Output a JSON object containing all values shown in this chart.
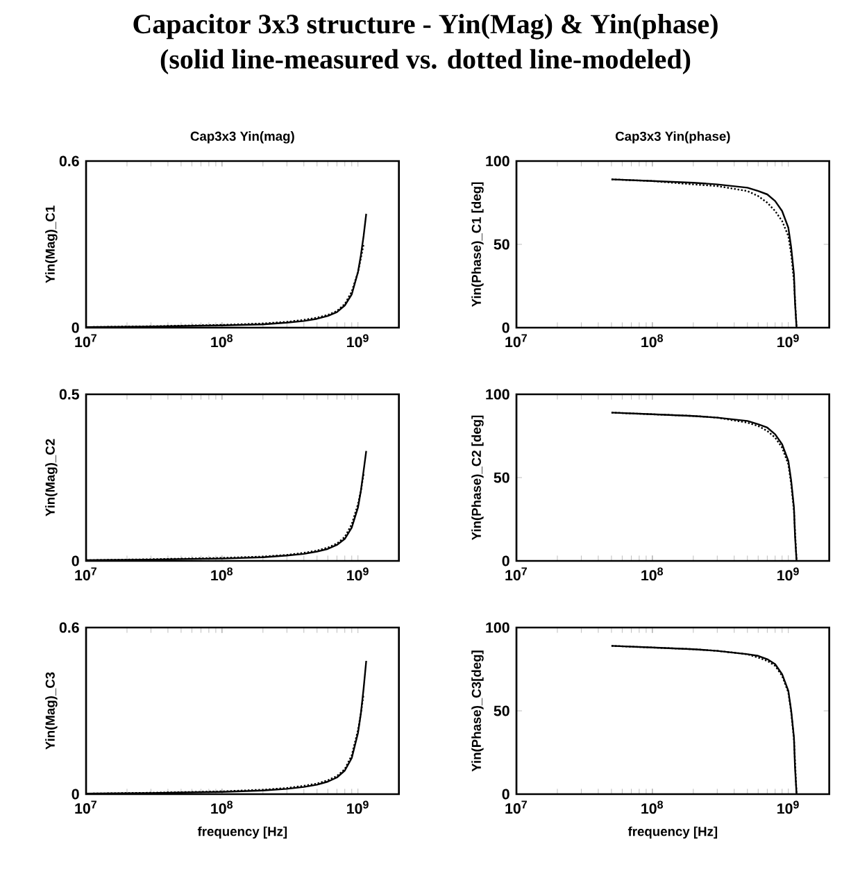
{
  "chart_data": [
    {
      "type": "other",
      "title": "Capacitor 3x3 structure - Yin(Mag) & Yin(phase)",
      "subtitle": "(solid line-measured vs. dotted line-modeled)"
    },
    {
      "type": "line",
      "title": "Cap3x3 Yin(mag)",
      "ylabel": "Yin(Mag)_C1",
      "log": "x",
      "xlim": [
        10000000,
        2000000000
      ],
      "xticks": [
        {
          "value": 10000000,
          "label": "10$^{7}$"
        },
        {
          "value": 100000000,
          "label": "10$^{8}$"
        },
        {
          "value": 1000000000,
          "label": "10$^{9}$"
        }
      ],
      "ylim": [
        0,
        0.6
      ],
      "yticks": [
        0,
        0.6
      ],
      "marker": "none",
      "series": [
        {
          "color": "#000000",
          "line_style": "solid",
          "x": [
            10000000,
            30000000,
            100000000,
            200000000,
            300000000,
            400000000,
            500000000,
            600000000,
            700000000,
            800000000,
            900000000,
            1000000000,
            1050000000,
            1100000000,
            1150000000
          ],
          "values": [
            0.002,
            0.004,
            0.008,
            0.012,
            0.018,
            0.024,
            0.032,
            0.042,
            0.056,
            0.08,
            0.12,
            0.2,
            0.26,
            0.33,
            0.41
          ]
        },
        {
          "color": "#000000",
          "line_style": "dotted",
          "x": [
            10000000,
            30000000,
            100000000,
            200000000,
            300000000,
            400000000,
            500000000,
            600000000,
            700000000,
            800000000,
            900000000,
            1000000000,
            1050000000,
            1100000000
          ],
          "values": [
            0.002,
            0.005,
            0.01,
            0.015,
            0.021,
            0.028,
            0.036,
            0.046,
            0.06,
            0.085,
            0.13,
            0.2,
            0.25,
            0.3
          ]
        }
      ]
    },
    {
      "type": "line",
      "title": "Cap3x3 Yin(phase)",
      "ylabel": "Yin(Phase)_C1 [deg]",
      "log": "x",
      "xlim": [
        10000000,
        2000000000
      ],
      "xticks": [
        {
          "value": 10000000,
          "label": "10$^{7}$"
        },
        {
          "value": 100000000,
          "label": "10$^{8}$"
        },
        {
          "value": 1000000000,
          "label": "10$^{9}$"
        }
      ],
      "ylim": [
        0,
        100
      ],
      "yticks": [
        0,
        50,
        100
      ],
      "marker": "none",
      "series": [
        {
          "color": "#000000",
          "line_style": "solid",
          "x": [
            50000000,
            100000000,
            200000000,
            300000000,
            500000000,
            600000000,
            700000000,
            800000000,
            900000000,
            1000000000,
            1050000000,
            1100000000,
            1120000000,
            1150000000
          ],
          "values": [
            89,
            88,
            87,
            86,
            84,
            82,
            80,
            76,
            70,
            60,
            48,
            32,
            15,
            0
          ]
        },
        {
          "color": "#000000",
          "line_style": "dotted",
          "x": [
            50000000,
            100000000,
            200000000,
            300000000,
            500000000,
            600000000,
            700000000,
            800000000,
            900000000,
            1000000000,
            1050000000,
            1100000000,
            1150000000
          ],
          "values": [
            89,
            88,
            86,
            85,
            82,
            79,
            75,
            70,
            64,
            55,
            44,
            28,
            0
          ]
        }
      ]
    },
    {
      "type": "line",
      "ylabel": "Yin(Mag)_C2",
      "log": "x",
      "xlim": [
        10000000,
        2000000000
      ],
      "xticks": [
        {
          "value": 10000000,
          "label": "10$^{7}$"
        },
        {
          "value": 100000000,
          "label": "10$^{8}$"
        },
        {
          "value": 1000000000,
          "label": "10$^{9}$"
        }
      ],
      "ylim": [
        0,
        0.5
      ],
      "yticks": [
        0,
        0.5
      ],
      "marker": "none",
      "series": [
        {
          "color": "#000000",
          "line_style": "solid",
          "x": [
            10000000,
            30000000,
            100000000,
            200000000,
            300000000,
            400000000,
            500000000,
            600000000,
            700000000,
            800000000,
            900000000,
            1000000000,
            1050000000,
            1100000000,
            1150000000
          ],
          "values": [
            0.002,
            0.004,
            0.007,
            0.011,
            0.016,
            0.021,
            0.028,
            0.036,
            0.048,
            0.066,
            0.1,
            0.16,
            0.21,
            0.27,
            0.33
          ]
        },
        {
          "color": "#000000",
          "line_style": "dotted",
          "x": [
            10000000,
            30000000,
            100000000,
            200000000,
            300000000,
            400000000,
            500000000,
            600000000,
            700000000,
            800000000,
            900000000,
            1000000000,
            1050000000,
            1100000000
          ],
          "values": [
            0.002,
            0.005,
            0.009,
            0.013,
            0.018,
            0.024,
            0.031,
            0.04,
            0.052,
            0.072,
            0.11,
            0.17,
            0.21,
            0.26
          ]
        }
      ]
    },
    {
      "type": "line",
      "ylabel": "Yin(Phase)_C2 [deg]",
      "log": "x",
      "xlim": [
        10000000,
        2000000000
      ],
      "xticks": [
        {
          "value": 10000000,
          "label": "10$^{7}$"
        },
        {
          "value": 100000000,
          "label": "10$^{8}$"
        },
        {
          "value": 1000000000,
          "label": "10$^{9}$"
        }
      ],
      "ylim": [
        0,
        100
      ],
      "yticks": [
        0,
        50,
        100
      ],
      "marker": "none",
      "series": [
        {
          "color": "#000000",
          "line_style": "solid",
          "x": [
            50000000,
            100000000,
            200000000,
            300000000,
            500000000,
            600000000,
            700000000,
            800000000,
            900000000,
            1000000000,
            1050000000,
            1100000000,
            1120000000,
            1150000000
          ],
          "values": [
            89,
            88,
            87,
            86,
            84,
            82,
            80,
            76,
            70,
            60,
            48,
            32,
            15,
            0
          ]
        },
        {
          "color": "#000000",
          "line_style": "dotted",
          "x": [
            50000000,
            100000000,
            200000000,
            300000000,
            500000000,
            600000000,
            700000000,
            800000000,
            900000000,
            1000000000,
            1050000000,
            1100000000,
            1150000000
          ],
          "values": [
            89,
            88,
            87,
            86,
            83,
            81,
            78,
            74,
            68,
            58,
            46,
            30,
            0
          ]
        }
      ]
    },
    {
      "type": "line",
      "xlabel": "frequency [Hz]",
      "ylabel": "Yin(Mag)_C3",
      "log": "x",
      "xlim": [
        10000000,
        2000000000
      ],
      "xticks": [
        {
          "value": 10000000,
          "label": "10$^{7}$"
        },
        {
          "value": 100000000,
          "label": "10$^{8}$"
        },
        {
          "value": 1000000000,
          "label": "10$^{9}$"
        }
      ],
      "ylim": [
        0,
        0.6
      ],
      "yticks": [
        0,
        0.6
      ],
      "marker": "none",
      "series": [
        {
          "color": "#000000",
          "line_style": "solid",
          "x": [
            10000000,
            30000000,
            100000000,
            200000000,
            300000000,
            400000000,
            500000000,
            600000000,
            700000000,
            800000000,
            900000000,
            1000000000,
            1050000000,
            1100000000,
            1150000000
          ],
          "values": [
            0.002,
            0.004,
            0.008,
            0.013,
            0.019,
            0.026,
            0.034,
            0.045,
            0.06,
            0.085,
            0.13,
            0.22,
            0.29,
            0.38,
            0.48
          ]
        },
        {
          "color": "#000000",
          "line_style": "dotted",
          "x": [
            10000000,
            30000000,
            100000000,
            200000000,
            300000000,
            400000000,
            500000000,
            600000000,
            700000000,
            800000000,
            900000000,
            1000000000,
            1050000000,
            1100000000
          ],
          "values": [
            0.002,
            0.005,
            0.01,
            0.016,
            0.022,
            0.03,
            0.038,
            0.05,
            0.065,
            0.09,
            0.14,
            0.23,
            0.29,
            0.36
          ]
        }
      ]
    },
    {
      "type": "line",
      "xlabel": "frequency [Hz]",
      "ylabel": "Yin(Phase)_C3[deg]",
      "log": "x",
      "xlim": [
        10000000,
        2000000000
      ],
      "xticks": [
        {
          "value": 10000000,
          "label": "10$^{7}$"
        },
        {
          "value": 100000000,
          "label": "10$^{8}$"
        },
        {
          "value": 1000000000,
          "label": "10$^{9}$"
        }
      ],
      "ylim": [
        0,
        100
      ],
      "yticks": [
        0,
        50,
        100
      ],
      "marker": "none",
      "series": [
        {
          "color": "#000000",
          "line_style": "solid",
          "x": [
            50000000,
            100000000,
            200000000,
            300000000,
            500000000,
            600000000,
            700000000,
            800000000,
            900000000,
            1000000000,
            1050000000,
            1100000000,
            1120000000,
            1150000000
          ],
          "values": [
            89,
            88,
            87,
            86,
            84,
            83,
            81,
            78,
            72,
            62,
            50,
            34,
            16,
            0
          ]
        },
        {
          "color": "#000000",
          "line_style": "dotted",
          "x": [
            50000000,
            100000000,
            200000000,
            300000000,
            500000000,
            600000000,
            700000000,
            800000000,
            900000000,
            1000000000,
            1050000000,
            1100000000,
            1150000000
          ],
          "values": [
            89,
            88,
            87,
            86,
            84,
            82,
            80,
            77,
            71,
            61,
            49,
            33,
            0
          ]
        }
      ]
    }
  ]
}
